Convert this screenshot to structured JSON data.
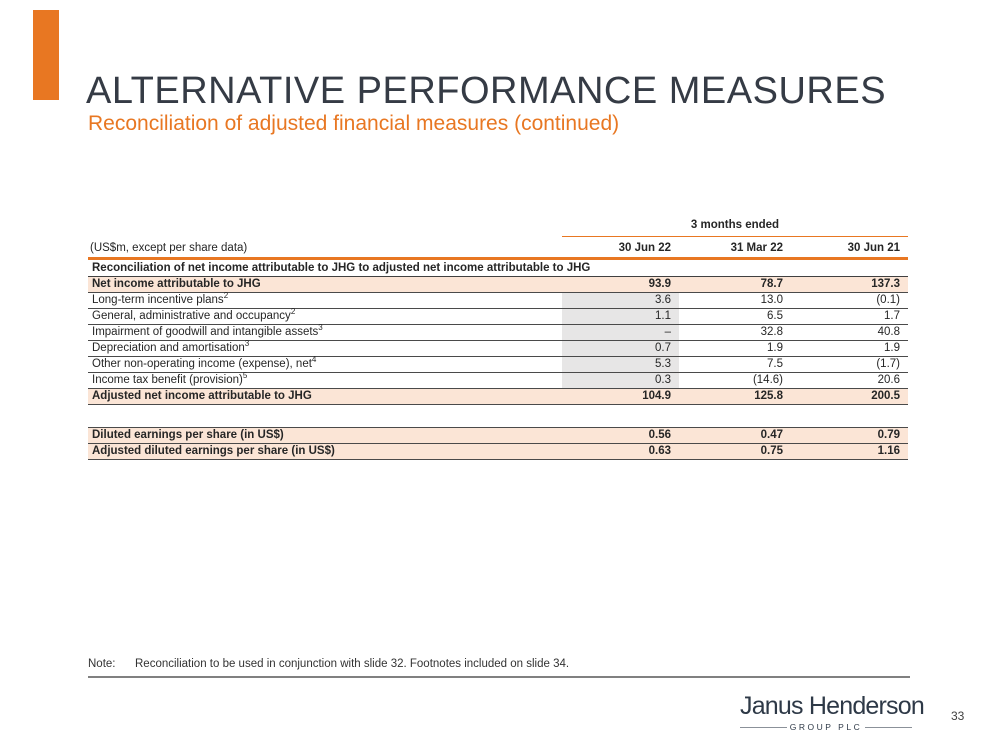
{
  "slide": {
    "title": "ALTERNATIVE PERFORMANCE MEASURES",
    "subtitle": "Reconciliation of adjusted financial measures (continued)",
    "page_number": "33",
    "note_label": "Note:",
    "note_text": "Reconciliation to be used in conjunction with slide 32. Footnotes included on slide 34."
  },
  "logo": {
    "name": "Janus Henderson",
    "subtext": "GROUP PLC"
  },
  "colors": {
    "accent": "#E87722",
    "title": "#353B45",
    "rowhl": "#FBE5D6",
    "shade": "#E7E6E6",
    "logo": "#2E3947"
  },
  "table": {
    "unit_label": "(US$m, except per share data)",
    "period_header": "3 months ended",
    "columns": [
      "30 Jun 22",
      "31 Mar 22",
      "30 Jun 21"
    ],
    "section_header": "Reconciliation of net income attributable to JHG to adjusted net income attributable to JHG",
    "rows": [
      {
        "label": "Net income attributable to JHG",
        "sup": "",
        "values": [
          "93.9",
          "78.7",
          "137.3"
        ],
        "style": "highlight"
      },
      {
        "label": "Long-term incentive plans",
        "sup": "2",
        "values": [
          "3.6",
          "13.0",
          "(0.1)"
        ],
        "style": "normal"
      },
      {
        "label": "General, administrative and occupancy",
        "sup": "2",
        "values": [
          "1.1",
          "6.5",
          "1.7"
        ],
        "style": "normal"
      },
      {
        "label": "Impairment of goodwill and intangible assets",
        "sup": "3",
        "values": [
          "–",
          "32.8",
          "40.8"
        ],
        "style": "normal"
      },
      {
        "label": "Depreciation and amortisation",
        "sup": "3",
        "values": [
          "0.7",
          "1.9",
          "1.9"
        ],
        "style": "normal"
      },
      {
        "label": "Other non-operating income (expense), net",
        "sup": "4",
        "values": [
          "5.3",
          "7.5",
          "(1.7)"
        ],
        "style": "normal"
      },
      {
        "label": "Income tax benefit (provision)",
        "sup": "5",
        "values": [
          "0.3",
          "(14.6)",
          "20.6"
        ],
        "style": "normal"
      },
      {
        "label": "Adjusted net income attributable to JHG",
        "sup": "",
        "values": [
          "104.9",
          "125.8",
          "200.5"
        ],
        "style": "highlight"
      }
    ],
    "eps_rows": [
      {
        "label": "Diluted earnings per share (in US$)",
        "values": [
          "0.56",
          "0.47",
          "0.79"
        ]
      },
      {
        "label": "Adjusted diluted earnings per share (in US$)",
        "values": [
          "0.63",
          "0.75",
          "1.16"
        ]
      }
    ]
  }
}
